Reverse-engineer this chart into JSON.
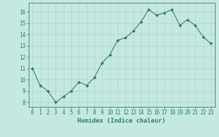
{
  "x": [
    0,
    1,
    2,
    3,
    4,
    5,
    6,
    7,
    8,
    9,
    10,
    11,
    12,
    13,
    14,
    15,
    16,
    17,
    18,
    19,
    20,
    21,
    22,
    23
  ],
  "y": [
    11.0,
    9.5,
    9.0,
    8.0,
    8.5,
    9.0,
    9.8,
    9.5,
    10.2,
    11.5,
    12.2,
    13.5,
    13.7,
    14.3,
    15.1,
    16.2,
    15.7,
    15.9,
    16.2,
    14.8,
    15.3,
    14.8,
    13.8,
    13.2
  ],
  "line_color": "#2e7d6e",
  "marker_color": "#2e7d6e",
  "bg_color": "#c5e8e2",
  "grid_color": "#b0d4cc",
  "xlabel": "Humidex (Indice chaleur)",
  "xlim": [
    -0.5,
    23.5
  ],
  "ylim": [
    7.6,
    16.8
  ],
  "yticks": [
    8,
    9,
    10,
    11,
    12,
    13,
    14,
    15,
    16
  ],
  "xticks": [
    0,
    1,
    2,
    3,
    4,
    5,
    6,
    7,
    8,
    9,
    10,
    11,
    12,
    13,
    14,
    15,
    16,
    17,
    18,
    19,
    20,
    21,
    22,
    23
  ],
  "tick_fontsize": 5.5,
  "label_fontsize": 6.5
}
